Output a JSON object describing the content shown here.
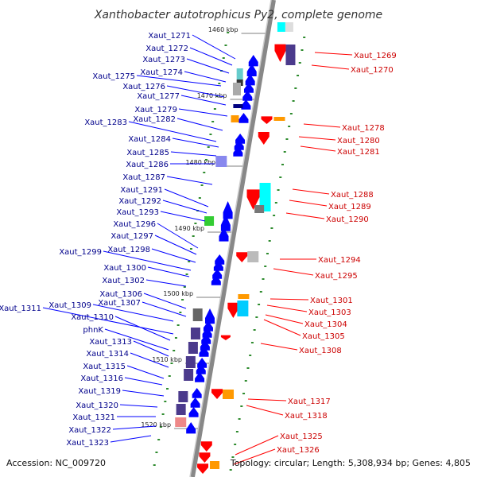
{
  "title": "Xanthobacter autotrophicus Py2, complete genome",
  "accession": "Accession: NC_009720",
  "topology": "Topology: circular; Length: 5,308,934 bp; Genes: 4,805",
  "colors": {
    "forward": "#0000ff",
    "reverse": "#ff0000",
    "backbone": "#888888"
  },
  "ruler": [
    "1460 kbp",
    "1470 kbp",
    "1480 kbp",
    "1490 kbp",
    "1500 kbp",
    "1510 kbp",
    "1520 kbp"
  ],
  "forward_genes": [
    "Xaut_1271",
    "Xaut_1272",
    "Xaut_1273",
    "Xaut_1274",
    "Xaut_1275",
    "Xaut_1276",
    "Xaut_1277",
    "Xaut_1279",
    "Xaut_1282",
    "Xaut_1283",
    "Xaut_1284",
    "Xaut_1285",
    "Xaut_1286",
    "Xaut_1287",
    "Xaut_1291",
    "Xaut_1292",
    "Xaut_1293",
    "Xaut_1296",
    "Xaut_1297",
    "Xaut_1298",
    "Xaut_1299",
    "Xaut_1300",
    "Xaut_1302",
    "Xaut_1306",
    "Xaut_1307",
    "Xaut_1309",
    "Xaut_1311",
    "Xaut_1310",
    "phnK",
    "Xaut_1313",
    "Xaut_1314",
    "Xaut_1315",
    "Xaut_1316",
    "Xaut_1319",
    "Xaut_1320",
    "Xaut_1321",
    "Xaut_1322",
    "Xaut_1323"
  ],
  "reverse_genes": [
    "Xaut_1269",
    "Xaut_1270",
    "Xaut_1278",
    "Xaut_1280",
    "Xaut_1281",
    "Xaut_1288",
    "Xaut_1289",
    "Xaut_1290",
    "Xaut_1294",
    "Xaut_1295",
    "Xaut_1301",
    "Xaut_1303",
    "Xaut_1304",
    "Xaut_1305",
    "Xaut_1308",
    "Xaut_1317",
    "Xaut_1318",
    "Xaut_1325",
    "Xaut_1326"
  ]
}
